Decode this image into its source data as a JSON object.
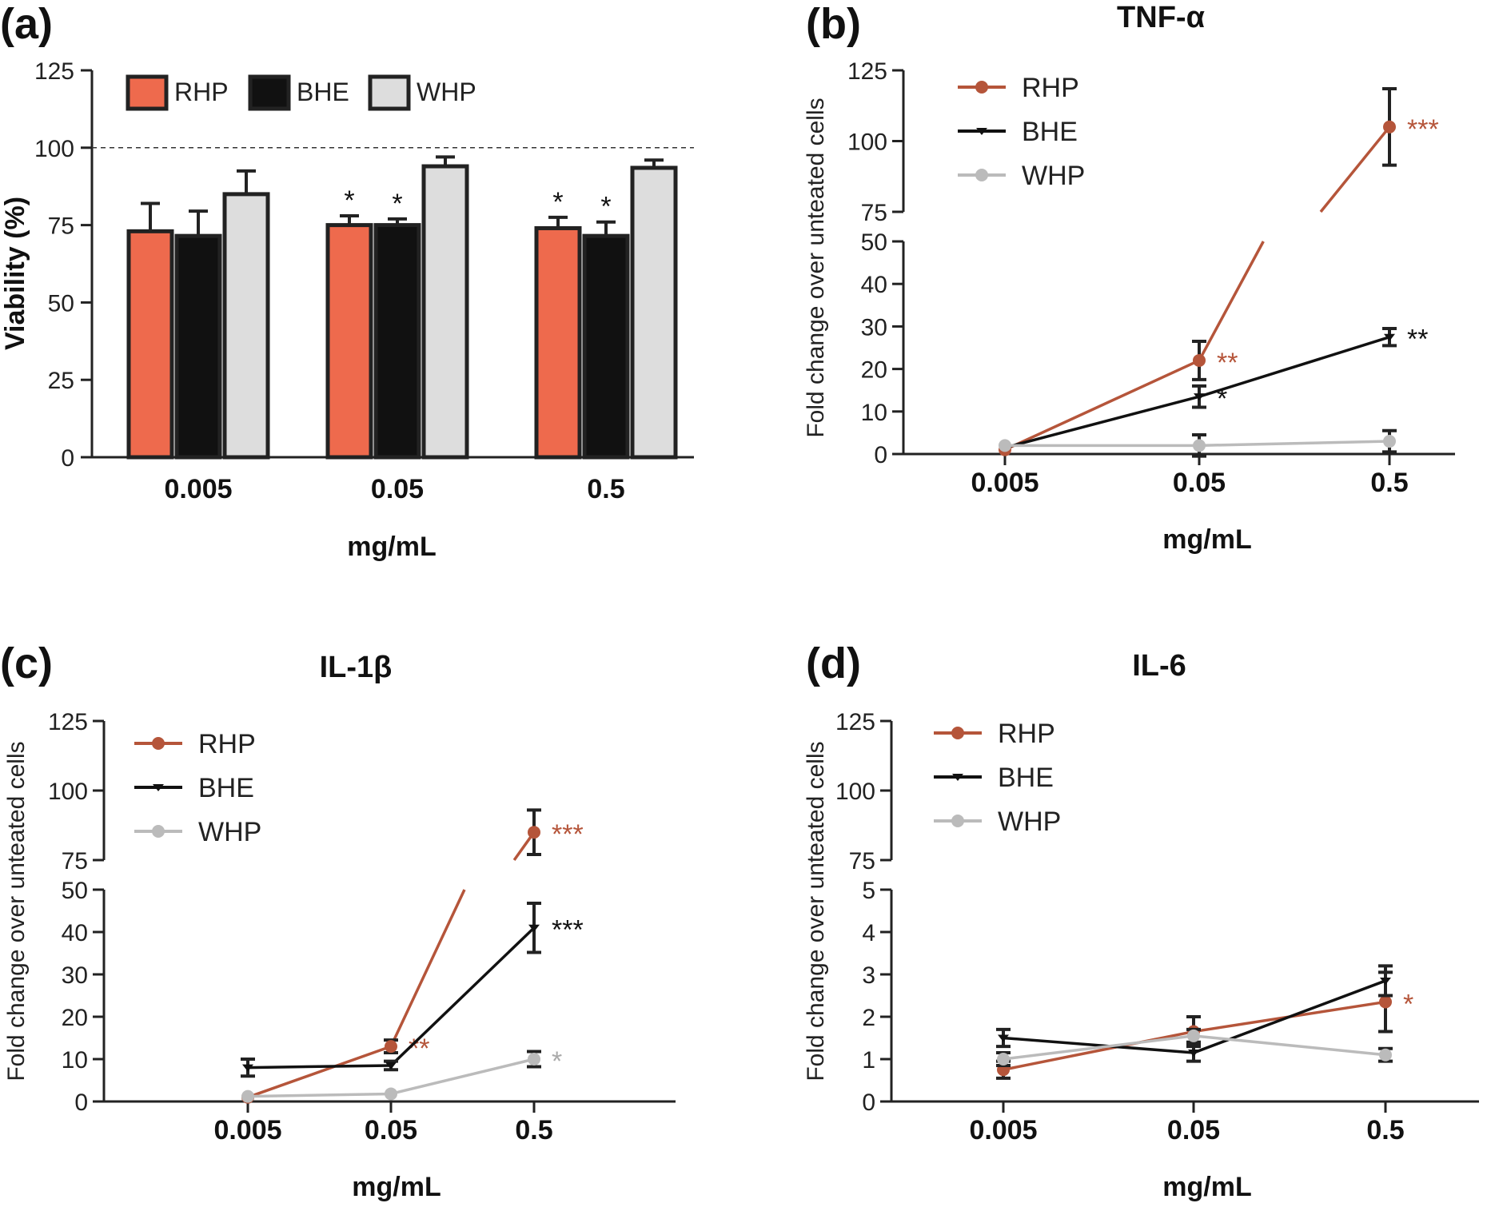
{
  "chart_data": [
    {
      "panel_label": "(a)",
      "type": "bar",
      "title": "",
      "xlabel": "mg/mL",
      "ylabel": "Viability (%)",
      "categories": [
        "0.005",
        "0.05",
        "0.5"
      ],
      "ylim": [
        0,
        125
      ],
      "yticks": [
        "0",
        "25",
        "50",
        "75",
        "100",
        "125"
      ],
      "reference_line": 100,
      "legend_position": "top-left",
      "series": [
        {
          "name": "RHP",
          "color": "#ee6a4d",
          "values": [
            73,
            75,
            74
          ],
          "errors": [
            9,
            3,
            3.5
          ],
          "marks": [
            "",
            "*",
            "*"
          ]
        },
        {
          "name": "BHE",
          "color": "#111111",
          "values": [
            71.5,
            75,
            71.5
          ],
          "errors": [
            8,
            2,
            4.5
          ],
          "marks": [
            "",
            "*",
            "*"
          ]
        },
        {
          "name": "WHP",
          "color": "#dddddd",
          "values": [
            85,
            94,
            93.5
          ],
          "errors": [
            7.5,
            3,
            2.5
          ],
          "marks": [
            "",
            "",
            ""
          ]
        }
      ]
    },
    {
      "panel_label": "(b)",
      "type": "line",
      "title": "TNF-α",
      "xlabel": "mg/mL",
      "ylabel": "Fold change over unteated cells",
      "categories": [
        "0.005",
        "0.05",
        "0.5"
      ],
      "broken_axis": {
        "lower": [
          0,
          50
        ],
        "upper": [
          75,
          125
        ]
      },
      "yticks_lower": [
        "0",
        "10",
        "20",
        "30",
        "40",
        "50"
      ],
      "yticks_upper": [
        "75",
        "100",
        "125"
      ],
      "legend_position": "top-left",
      "series": [
        {
          "name": "RHP",
          "color": "#b5553a",
          "marker": "circle",
          "values": [
            1,
            22,
            105
          ],
          "errors": [
            0,
            4.5,
            13.5
          ],
          "marks": [
            "",
            "**",
            "***"
          ]
        },
        {
          "name": "BHE",
          "color": "#111111",
          "marker": "tick",
          "values": [
            1.5,
            13.5,
            27.5
          ],
          "errors": [
            0,
            2.5,
            2
          ],
          "marks": [
            "",
            "*",
            "**"
          ]
        },
        {
          "name": "WHP",
          "color": "#bbbbbb",
          "marker": "circle",
          "values": [
            2,
            2,
            3
          ],
          "errors": [
            0,
            2.5,
            2.5
          ],
          "marks": [
            "",
            "",
            ""
          ]
        }
      ]
    },
    {
      "panel_label": "(c)",
      "type": "line",
      "title": "IL-1β",
      "xlabel": "mg/mL",
      "ylabel": "Fold change over unteated cells",
      "categories": [
        "0.005",
        "0.05",
        "0.5"
      ],
      "broken_axis": {
        "lower": [
          0,
          50
        ],
        "upper": [
          75,
          125
        ]
      },
      "yticks_lower": [
        "0",
        "10",
        "20",
        "30",
        "40",
        "50"
      ],
      "yticks_upper": [
        "75",
        "100",
        "125"
      ],
      "legend_position": "top-left",
      "series": [
        {
          "name": "RHP",
          "color": "#b5553a",
          "marker": "circle",
          "values": [
            1,
            13,
            85
          ],
          "errors": [
            0,
            1.5,
            8
          ],
          "marks": [
            "",
            "**",
            "***"
          ]
        },
        {
          "name": "BHE",
          "color": "#111111",
          "marker": "tick",
          "values": [
            8,
            8.5,
            41
          ],
          "errors": [
            2,
            1,
            5.8
          ],
          "marks": [
            "",
            "",
            "***"
          ]
        },
        {
          "name": "WHP",
          "color": "#bbbbbb",
          "marker": "circle",
          "values": [
            1.2,
            1.8,
            10
          ],
          "errors": [
            0,
            0,
            1.8
          ],
          "marks": [
            "",
            "",
            "*"
          ]
        }
      ]
    },
    {
      "panel_label": "(d)",
      "type": "line",
      "title": "IL-6",
      "xlabel": "mg/mL",
      "ylabel": "Fold change over unteated cells",
      "categories": [
        "0.005",
        "0.05",
        "0.5"
      ],
      "broken_axis": {
        "lower": [
          0,
          5
        ],
        "upper": [
          75,
          125
        ]
      },
      "yticks_lower": [
        "0",
        "1",
        "2",
        "3",
        "4",
        "5"
      ],
      "yticks_upper": [
        "75",
        "100",
        "125"
      ],
      "legend_position": "top-left",
      "series": [
        {
          "name": "RHP",
          "color": "#b5553a",
          "marker": "circle",
          "values": [
            0.75,
            1.65,
            2.35
          ],
          "errors": [
            0.2,
            0.35,
            0.7
          ],
          "marks": [
            "",
            "",
            "*"
          ]
        },
        {
          "name": "BHE",
          "color": "#111111",
          "marker": "tick",
          "values": [
            1.5,
            1.15,
            2.85
          ],
          "errors": [
            0.2,
            0.2,
            0.35
          ],
          "marks": [
            "",
            "",
            ""
          ]
        },
        {
          "name": "WHP",
          "color": "#bbbbbb",
          "marker": "circle",
          "values": [
            1,
            1.55,
            1.1
          ],
          "errors": [
            0.15,
            0.15,
            0.15
          ],
          "marks": [
            "",
            "",
            ""
          ]
        }
      ]
    }
  ]
}
